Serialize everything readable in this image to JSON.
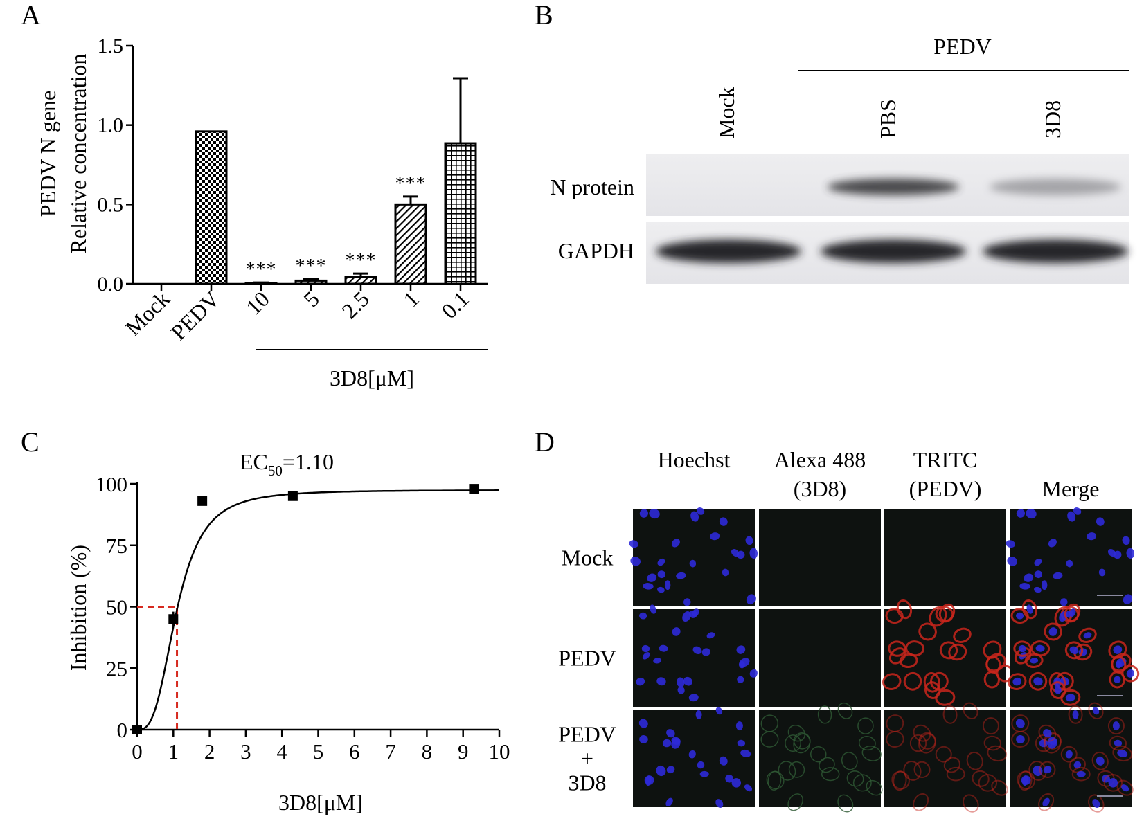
{
  "panels": {
    "A": {
      "letter": "A",
      "chart_data": {
        "type": "bar",
        "ylabel_line1": "PEDV N gene",
        "ylabel_line2": "Relative concentration",
        "ylim": [
          0,
          1.5
        ],
        "yticks": [
          "0.0",
          "0.5",
          "1.0",
          "1.5"
        ],
        "categories": [
          "Mock",
          "PEDV",
          "10",
          "5",
          "2.5",
          "1",
          "0.1"
        ],
        "values": [
          0.0,
          0.96,
          0.005,
          0.02,
          0.045,
          0.5,
          0.885
        ],
        "errors": [
          0,
          0,
          0.003,
          0.01,
          0.02,
          0.05,
          0.41
        ],
        "significance": [
          "",
          "",
          "***",
          "***",
          "***",
          "***",
          ""
        ],
        "patterns": [
          "none",
          "checker",
          "none",
          "stripe",
          "stripe",
          "stripe",
          "grid"
        ],
        "group_label": "3D8[μM]"
      }
    },
    "B": {
      "letter": "B",
      "header": "PEDV",
      "lanes": [
        "Mock",
        "PBS",
        "3D8"
      ],
      "rows": [
        "N protein",
        "GAPDH"
      ],
      "band_intensity": {
        "N protein": [
          0.0,
          0.85,
          0.35
        ],
        "GAPDH": [
          1.0,
          1.0,
          1.0
        ]
      }
    },
    "C": {
      "letter": "C",
      "annotation_prefix": "EC",
      "annotation_sub": "50",
      "annotation_value": "=1.10",
      "chart_data": {
        "type": "scatter",
        "xlabel": "3D8[μM]",
        "ylabel": "Inhibition (%)",
        "xlim": [
          0,
          10
        ],
        "ylim": [
          0,
          100
        ],
        "xticks": [
          "0",
          "1",
          "2",
          "3",
          "4",
          "5",
          "6",
          "7",
          "8",
          "9",
          "10"
        ],
        "yticks": [
          "0",
          "25",
          "50",
          "75",
          "100"
        ],
        "points": [
          {
            "x": 0,
            "y": 0,
            "err": 0
          },
          {
            "x": 1,
            "y": 45,
            "err": 3
          },
          {
            "x": 1.8,
            "y": 93,
            "err": 0
          },
          {
            "x": 4.3,
            "y": 95,
            "err": 0
          },
          {
            "x": 9.3,
            "y": 98,
            "err": 0
          }
        ],
        "fit": {
          "top": 97.5,
          "ec50": 1.1,
          "hill": 3
        },
        "ec50_guide": {
          "x": 1.1,
          "y": 50
        }
      }
    },
    "D": {
      "letter": "D",
      "columns": [
        {
          "line1": "Hoechst",
          "line2": ""
        },
        {
          "line1": "Alexa 488",
          "line2": "(3D8)"
        },
        {
          "line1": "TRITC",
          "line2": "(PEDV)"
        },
        {
          "line1": "",
          "line2": "Merge"
        }
      ],
      "rows": [
        {
          "line1": "",
          "line2": "Mock",
          "line3": ""
        },
        {
          "line1": "",
          "line2": "PEDV",
          "line3": ""
        },
        {
          "line1": "PEDV",
          "line2": "+",
          "line3": "3D8"
        }
      ],
      "channels": {
        "blue": "#2d2ad8",
        "red": "#c8261c",
        "green": "#2f5a34",
        "background": "#0e1210"
      }
    }
  }
}
